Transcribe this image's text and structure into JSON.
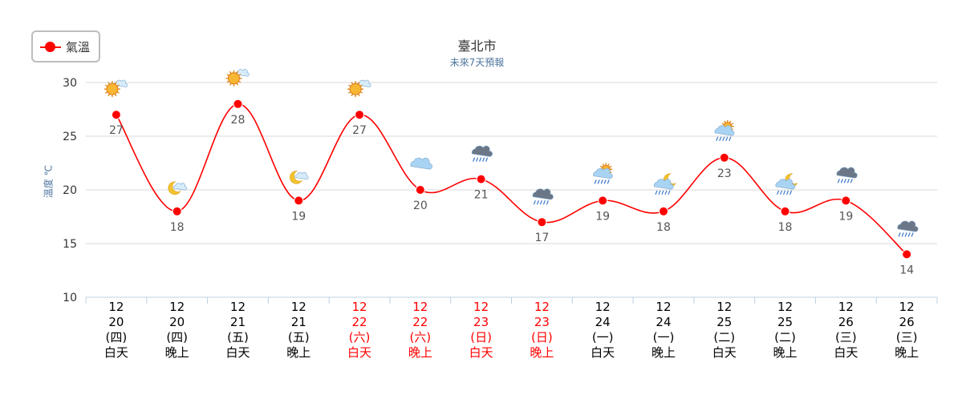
{
  "legend": {
    "label": "氣溫",
    "color": "#ff0000"
  },
  "chart_data": {
    "type": "line",
    "title": "臺北市",
    "subtitle": "未來7天預報",
    "ylabel": "溫度 ℃",
    "ylim": [
      10,
      30
    ],
    "yticks": [
      10,
      15,
      20,
      25,
      30
    ],
    "grid": true,
    "legend_position": "top-left",
    "categories": [
      {
        "month": "12",
        "day": "20",
        "weekday": "(四)",
        "period": "白天",
        "weekend": false,
        "icon": "sunny-partly-cloudy-icon"
      },
      {
        "month": "12",
        "day": "20",
        "weekday": "(四)",
        "period": "晚上",
        "weekend": false,
        "icon": "moon-cloud-icon"
      },
      {
        "month": "12",
        "day": "21",
        "weekday": "(五)",
        "period": "白天",
        "weekend": false,
        "icon": "sunny-partly-cloudy-icon"
      },
      {
        "month": "12",
        "day": "21",
        "weekday": "(五)",
        "period": "晚上",
        "weekend": false,
        "icon": "moon-cloud-icon"
      },
      {
        "month": "12",
        "day": "22",
        "weekday": "(六)",
        "period": "白天",
        "weekend": true,
        "icon": "sunny-partly-cloudy-icon"
      },
      {
        "month": "12",
        "day": "22",
        "weekday": "(六)",
        "period": "晚上",
        "weekend": true,
        "icon": "cloudy-icon"
      },
      {
        "month": "12",
        "day": "23",
        "weekday": "(日)",
        "period": "白天",
        "weekend": true,
        "icon": "dark-cloud-rain-icon"
      },
      {
        "month": "12",
        "day": "23",
        "weekday": "(日)",
        "period": "晚上",
        "weekend": true,
        "icon": "dark-cloud-rain-icon"
      },
      {
        "month": "12",
        "day": "24",
        "weekday": "(一)",
        "period": "白天",
        "weekend": false,
        "icon": "sun-cloud-rain-icon"
      },
      {
        "month": "12",
        "day": "24",
        "weekday": "(一)",
        "period": "晚上",
        "weekend": false,
        "icon": "moon-cloud-rain-icon"
      },
      {
        "month": "12",
        "day": "25",
        "weekday": "(二)",
        "period": "白天",
        "weekend": false,
        "icon": "sun-cloud-rain-icon"
      },
      {
        "month": "12",
        "day": "25",
        "weekday": "(二)",
        "period": "晚上",
        "weekend": false,
        "icon": "moon-cloud-rain-icon"
      },
      {
        "month": "12",
        "day": "26",
        "weekday": "(三)",
        "period": "白天",
        "weekend": false,
        "icon": "dark-cloud-rain-icon"
      },
      {
        "month": "12",
        "day": "26",
        "weekday": "(三)",
        "period": "晚上",
        "weekend": false,
        "icon": "dark-cloud-rain-icon"
      }
    ],
    "series": [
      {
        "name": "氣溫",
        "color": "#ff0000",
        "values": [
          27,
          18,
          28,
          19,
          27,
          20,
          21,
          17,
          19,
          18,
          23,
          18,
          19,
          14
        ]
      }
    ],
    "colors": {
      "weekday_label": "#000000",
      "weekend_label": "#ff0000",
      "grid": "#d8d8d8",
      "axis_text": "#333333",
      "data_label": "#555555"
    }
  }
}
